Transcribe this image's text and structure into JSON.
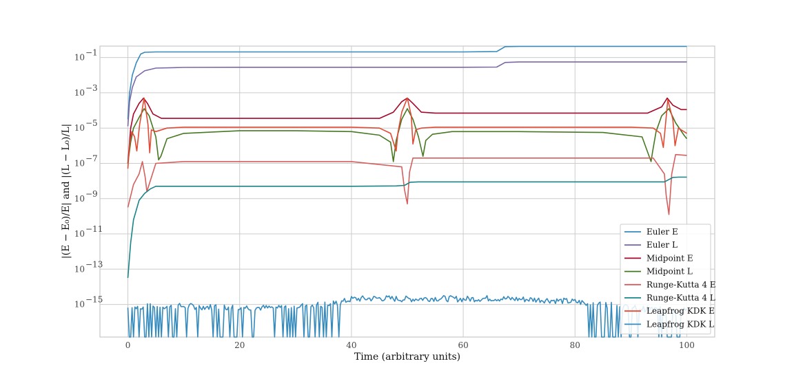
{
  "chart_data": {
    "type": "line",
    "title": "",
    "xlabel": "Time (arbitrary units)",
    "ylabel": "|(E − E₀)/E| and |(L − L₀)/L|",
    "xlim": [
      -5,
      105
    ],
    "ylim_log10": [
      -16.85,
      -0.35
    ],
    "y_scale": "log",
    "grid": true,
    "legend_position": "lower-right",
    "x_ticks": [
      0,
      20,
      40,
      60,
      80,
      100
    ],
    "y_ticks": [
      {
        "exp": -1,
        "label": "10",
        "sup": "−1"
      },
      {
        "exp": -3,
        "label": "10",
        "sup": "−3"
      },
      {
        "exp": -5,
        "label": "10",
        "sup": "−5"
      },
      {
        "exp": -7,
        "label": "10",
        "sup": "−7"
      },
      {
        "exp": -9,
        "label": "10",
        "sup": "−9"
      },
      {
        "exp": -11,
        "label": "10",
        "sup": "−11"
      },
      {
        "exp": -13,
        "label": "10",
        "sup": "−13"
      },
      {
        "exp": -15,
        "label": "10",
        "sup": "−15"
      }
    ],
    "series": [
      {
        "name": "Euler E",
        "color": "#348ABD",
        "x": [
          0,
          0.3,
          0.8,
          1.5,
          2.3,
          3,
          5,
          20,
          40,
          60,
          66,
          67.5,
          70,
          90,
          100
        ],
        "y_log10": [
          -4.5,
          -3,
          -2,
          -1.3,
          -0.8,
          -0.7,
          -0.68,
          -0.68,
          -0.68,
          -0.68,
          -0.66,
          -0.38,
          -0.37,
          -0.37,
          -0.37
        ]
      },
      {
        "name": "Euler L",
        "color": "#7A68A6",
        "x": [
          0,
          0.3,
          0.8,
          1.5,
          3,
          5,
          10,
          20,
          40,
          60,
          66,
          67.5,
          70,
          90,
          100
        ],
        "y_log10": [
          -4.9,
          -3.5,
          -2.7,
          -2.1,
          -1.75,
          -1.6,
          -1.56,
          -1.55,
          -1.55,
          -1.55,
          -1.54,
          -1.28,
          -1.25,
          -1.25,
          -1.25
        ]
      },
      {
        "name": "Midpoint E",
        "color": "#A60628",
        "x": [
          0,
          0.5,
          1,
          2,
          2.8,
          3.5,
          4.5,
          6,
          20,
          45,
          47.5,
          49,
          50,
          51,
          52.5,
          55,
          75,
          93,
          95.5,
          96.5,
          97.5,
          99,
          100
        ],
        "y_log10": [
          -7,
          -5,
          -4.2,
          -3.6,
          -3.3,
          -3.6,
          -4.2,
          -4.45,
          -4.45,
          -4.45,
          -4.1,
          -3.5,
          -3.3,
          -3.6,
          -4.1,
          -4.15,
          -4.15,
          -4.15,
          -3.8,
          -3.3,
          -3.7,
          -3.95,
          -3.95
        ]
      },
      {
        "name": "Midpoint L",
        "color": "#467821",
        "x": [
          0,
          0.5,
          1,
          2,
          2.9,
          3.8,
          5,
          5.5,
          5.9,
          7,
          10,
          20,
          30,
          40,
          45,
          47,
          47.5,
          48,
          49,
          50,
          51,
          52,
          52.8,
          53.3,
          54.5,
          58,
          70,
          85,
          92,
          93.6,
          93.9,
          94.5,
          95.5,
          96.8,
          98,
          99.5,
          100
        ],
        "y_log10": [
          -7,
          -5.8,
          -5,
          -4.4,
          -3.9,
          -4.3,
          -5.5,
          -6.8,
          -6.6,
          -5.6,
          -5.3,
          -5.15,
          -5.15,
          -5.2,
          -5.4,
          -5.8,
          -6.9,
          -5.7,
          -4.5,
          -3.9,
          -4.5,
          -5.5,
          -6.6,
          -5.7,
          -5.35,
          -5.2,
          -5.2,
          -5.25,
          -5.5,
          -6.9,
          -6.3,
          -5.2,
          -4.3,
          -3.9,
          -4.7,
          -5.4,
          -5.6
        ]
      },
      {
        "name": "Runge-Kutta 4 E",
        "color": "#D55E5E",
        "x": [
          0,
          1,
          2,
          2.6,
          3.1,
          3.4,
          5,
          10,
          20,
          40,
          49,
          49.5,
          50,
          50.4,
          51,
          55,
          70,
          94,
          96,
          96.3,
          96.8,
          97.3,
          98,
          100
        ],
        "y_log10": [
          -9.5,
          -8.2,
          -7.6,
          -6.9,
          -7.8,
          -8.6,
          -7.0,
          -6.9,
          -6.9,
          -6.9,
          -7.2,
          -8.5,
          -9.3,
          -7.5,
          -6.7,
          -6.7,
          -6.7,
          -6.7,
          -7.6,
          -8.8,
          -9.9,
          -7.6,
          -6.5,
          -6.55
        ]
      },
      {
        "name": "Runge-Kutta 4 L",
        "color": "#188487",
        "x": [
          0,
          0.5,
          1,
          2,
          3,
          4,
          5,
          10,
          20,
          40,
          48,
          49.5,
          50.5,
          52,
          60,
          70,
          80,
          96,
          97.5,
          98.5,
          100
        ],
        "y_log10": [
          -13.5,
          -11.5,
          -10.2,
          -9.1,
          -8.7,
          -8.45,
          -8.3,
          -8.3,
          -8.3,
          -8.3,
          -8.28,
          -8.25,
          -8.07,
          -8.05,
          -8.05,
          -8.05,
          -8.05,
          -8.05,
          -7.8,
          -7.78,
          -7.78
        ]
      },
      {
        "name": "Leapfrog KDK E",
        "color": "#E24A33",
        "x": [
          0,
          0.3,
          0.7,
          1.2,
          1.6,
          2.1,
          2.9,
          3.6,
          3.9,
          4.2,
          5,
          7,
          10,
          20,
          30,
          40,
          45,
          47,
          48,
          48.3,
          49,
          50,
          50.7,
          51,
          51.5,
          52.5,
          55,
          70,
          90,
          94,
          95.3,
          95.8,
          96.6,
          97.5,
          97.9,
          98.5,
          100
        ],
        "y_log10": [
          -7.3,
          -5.9,
          -5.2,
          -5.5,
          -6.3,
          -4.8,
          -3.3,
          -4.8,
          -6.4,
          -5.1,
          -5.2,
          -5.0,
          -4.95,
          -4.95,
          -4.95,
          -4.95,
          -5.0,
          -5.3,
          -6.3,
          -5.3,
          -4.1,
          -3.3,
          -4.3,
          -5.9,
          -5.1,
          -5.0,
          -4.95,
          -4.95,
          -4.95,
          -5.0,
          -5.3,
          -6.1,
          -3.4,
          -4.5,
          -6.0,
          -5.0,
          -5.3
        ]
      },
      {
        "name": "Leapfrog KDK L",
        "color": "#348ABD",
        "noise_floor": true,
        "x": [
          0,
          5,
          10,
          15,
          20,
          25,
          30,
          35,
          38,
          40,
          45,
          50,
          55,
          60,
          65,
          70,
          75,
          80,
          85,
          90,
          95,
          100
        ],
        "y_log10": [
          -15.2,
          -15.1,
          -15.1,
          -15.15,
          -15.15,
          -15.2,
          -15.1,
          -15.0,
          -14.9,
          -14.7,
          -14.65,
          -14.7,
          -14.65,
          -14.7,
          -14.65,
          -14.7,
          -14.75,
          -14.85,
          -15.0,
          -15.2,
          -15.3,
          -15.3
        ]
      }
    ]
  }
}
